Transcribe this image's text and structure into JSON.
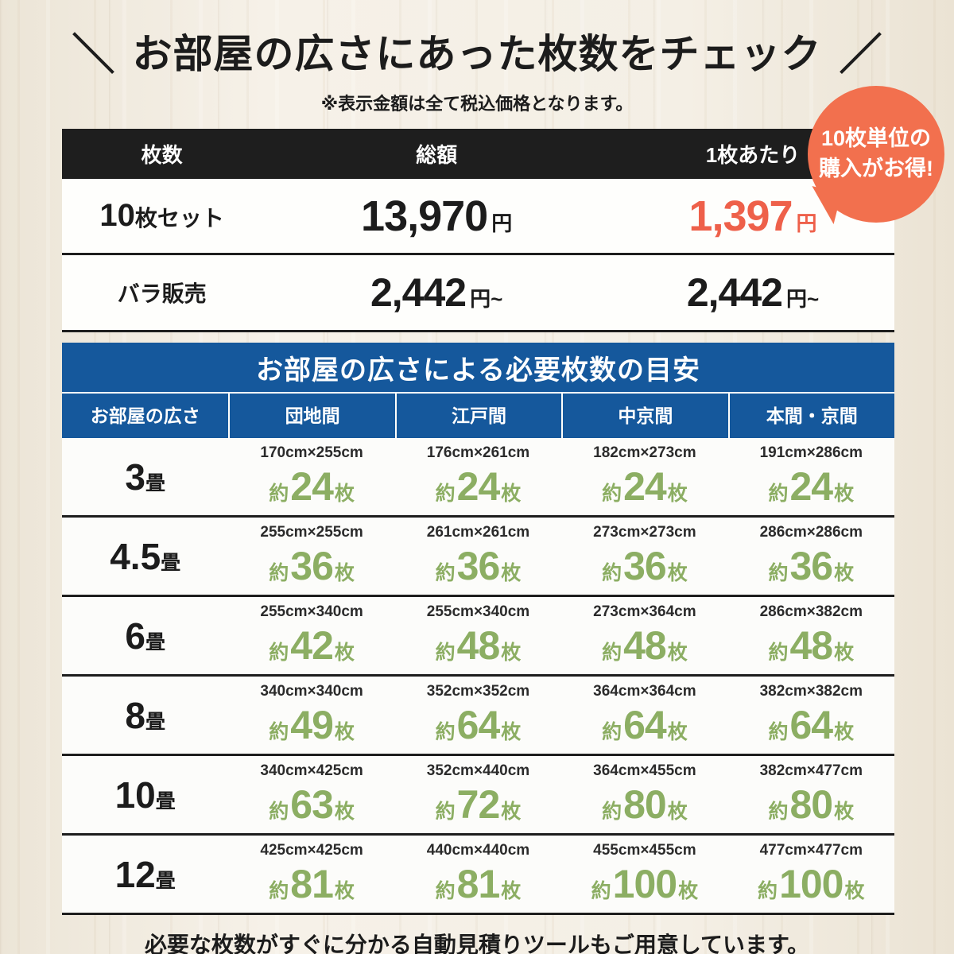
{
  "page": {
    "title": "お部屋の広さにあった枚数をチェック",
    "decor_left": "＼",
    "decor_right": "／",
    "subtitle": "※表示金額は全て税込価格となります。",
    "footer_note": "必要な枚数がすぐに分かる自動見積りツールもご用意しています。"
  },
  "colors": {
    "accent_orange": "#f2704e",
    "price_orange": "#ee604a",
    "header_dark": "#1e1e1e",
    "table_blue": "#15589c",
    "count_green": "#8cae63"
  },
  "badge": {
    "line1": "10枚単位の",
    "line2": "購入がお得!"
  },
  "labels": {
    "approx": "約",
    "sheets": "枚",
    "tatami": "畳"
  },
  "price_table": {
    "headers": [
      "枚数",
      "総額",
      "1枚あたり"
    ],
    "set_row": {
      "label_num": "10",
      "label_suffix": "枚セット",
      "total": "13,970",
      "total_unit": "円",
      "per": "1,397",
      "per_unit": "円"
    },
    "bulk_row": {
      "label": "バラ販売",
      "total": "2,442",
      "total_unit": "円~",
      "per": "2,442",
      "per_unit": "円~"
    }
  },
  "size_table": {
    "title": "お部屋の広さによる必要枚数の目安",
    "columns": [
      "お部屋の広さ",
      "団地間",
      "江戸間",
      "中京間",
      "本間・京間"
    ],
    "rows": [
      {
        "size": "3",
        "cells": [
          {
            "dim": "170cm×255cm",
            "count": "24"
          },
          {
            "dim": "176cm×261cm",
            "count": "24"
          },
          {
            "dim": "182cm×273cm",
            "count": "24"
          },
          {
            "dim": "191cm×286cm",
            "count": "24"
          }
        ]
      },
      {
        "size": "4.5",
        "cells": [
          {
            "dim": "255cm×255cm",
            "count": "36"
          },
          {
            "dim": "261cm×261cm",
            "count": "36"
          },
          {
            "dim": "273cm×273cm",
            "count": "36"
          },
          {
            "dim": "286cm×286cm",
            "count": "36"
          }
        ]
      },
      {
        "size": "6",
        "cells": [
          {
            "dim": "255cm×340cm",
            "count": "42"
          },
          {
            "dim": "255cm×340cm",
            "count": "48"
          },
          {
            "dim": "273cm×364cm",
            "count": "48"
          },
          {
            "dim": "286cm×382cm",
            "count": "48"
          }
        ]
      },
      {
        "size": "8",
        "cells": [
          {
            "dim": "340cm×340cm",
            "count": "49"
          },
          {
            "dim": "352cm×352cm",
            "count": "64"
          },
          {
            "dim": "364cm×364cm",
            "count": "64"
          },
          {
            "dim": "382cm×382cm",
            "count": "64"
          }
        ]
      },
      {
        "size": "10",
        "cells": [
          {
            "dim": "340cm×425cm",
            "count": "63"
          },
          {
            "dim": "352cm×440cm",
            "count": "72"
          },
          {
            "dim": "364cm×455cm",
            "count": "80"
          },
          {
            "dim": "382cm×477cm",
            "count": "80"
          }
        ]
      },
      {
        "size": "12",
        "cells": [
          {
            "dim": "425cm×425cm",
            "count": "81"
          },
          {
            "dim": "440cm×440cm",
            "count": "81"
          },
          {
            "dim": "455cm×455cm",
            "count": "100"
          },
          {
            "dim": "477cm×477cm",
            "count": "100"
          }
        ]
      }
    ]
  }
}
